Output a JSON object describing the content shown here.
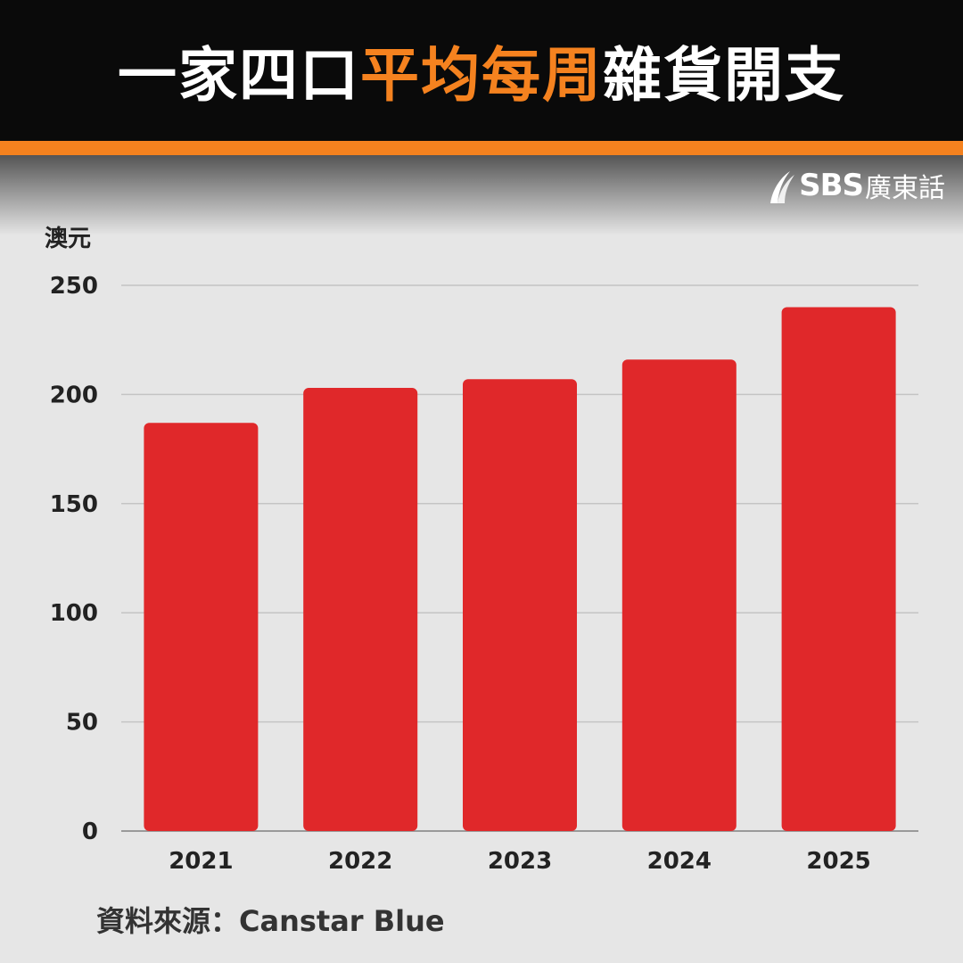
{
  "header": {
    "title_part1": "一家四口",
    "title_highlight": "平均每周",
    "title_part2": "雜貨開支"
  },
  "logo": {
    "brand": "SBS",
    "lang": "廣東話",
    "icon": "sbs-swoosh-icon"
  },
  "colors": {
    "header_bg": "#0a0a0a",
    "accent": "#f5821f",
    "bar": "#e0282a",
    "background": "#e6e6e6"
  },
  "chart_data": {
    "type": "bar",
    "ylabel": "澳元",
    "categories": [
      "2021",
      "2022",
      "2023",
      "2024",
      "2025"
    ],
    "values": [
      187,
      203,
      207,
      216,
      240
    ],
    "ylim": [
      0,
      250
    ],
    "yticks": [
      0,
      50,
      100,
      150,
      200,
      250
    ],
    "grid": true,
    "legend": "none"
  },
  "source": {
    "text": "資料來源：Canstar Blue"
  }
}
